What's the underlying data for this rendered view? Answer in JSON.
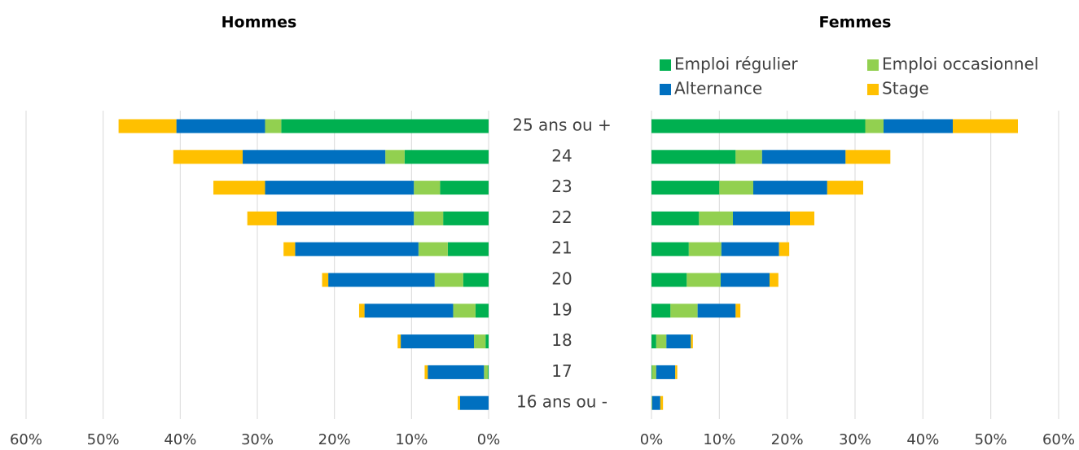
{
  "chart_data": [
    {
      "type": "bar",
      "orientation": "horizontal",
      "title": "Hommes",
      "categories": [
        "25 ans ou +",
        "24",
        "23",
        "22",
        "21",
        "20",
        "19",
        "18",
        "17",
        "16 ans ou -"
      ],
      "xlim": [
        60,
        0
      ],
      "xticks": [
        {
          "value": 60,
          "label": "60%"
        },
        {
          "value": 50,
          "label": "50%"
        },
        {
          "value": 40,
          "label": "40%"
        },
        {
          "value": 30,
          "label": "30%"
        },
        {
          "value": 20,
          "label": "20%"
        },
        {
          "value": 10,
          "label": "10%"
        },
        {
          "value": 0,
          "label": "0%"
        }
      ],
      "grid": true,
      "stacked": true,
      "series": [
        {
          "color": "#00b050",
          "values": [
            26.9,
            10.9,
            6.3,
            5.9,
            5.3,
            3.3,
            1.7,
            0.4,
            0.1,
            0
          ]
        },
        {
          "color": "#92d050",
          "values": [
            2.1,
            2.5,
            3.4,
            3.8,
            3.8,
            3.7,
            2.9,
            1.5,
            0.5,
            0
          ]
        },
        {
          "color": "#0070c0",
          "values": [
            11.5,
            18.5,
            19.3,
            17.8,
            16.0,
            13.8,
            11.5,
            9.5,
            7.3,
            3.7
          ]
        },
        {
          "color": "#ffc000",
          "values": [
            7.5,
            9.0,
            6.7,
            3.8,
            1.5,
            0.8,
            0.7,
            0.4,
            0.4,
            0.3
          ]
        }
      ]
    },
    {
      "type": "bar",
      "orientation": "horizontal",
      "title": "Femmes",
      "xlim": [
        0,
        60
      ],
      "xticks": [
        {
          "value": 0,
          "label": "0%"
        },
        {
          "value": 10,
          "label": "10%"
        },
        {
          "value": 20,
          "label": "20%"
        },
        {
          "value": 30,
          "label": "30%"
        },
        {
          "value": 40,
          "label": "40%"
        },
        {
          "value": 50,
          "label": "50%"
        },
        {
          "value": 60,
          "label": "60%"
        }
      ],
      "grid": true,
      "stacked": true,
      "legend": "top",
      "series": [
        {
          "name": "Emploi régulier",
          "color": "#00b050",
          "values": [
            31.5,
            12.4,
            10.0,
            7.0,
            5.5,
            5.2,
            2.8,
            0.7,
            0.1,
            0
          ]
        },
        {
          "name": "Emploi occasionnel",
          "color": "#92d050",
          "values": [
            2.7,
            3.9,
            5.0,
            5.0,
            4.8,
            5.0,
            4.0,
            1.5,
            0.6,
            0.1
          ]
        },
        {
          "name": "Alternance",
          "color": "#0070c0",
          "values": [
            10.2,
            12.3,
            10.9,
            8.4,
            8.5,
            7.2,
            5.6,
            3.6,
            2.8,
            1.2
          ]
        },
        {
          "name": "Stage",
          "color": "#ffc000",
          "values": [
            9.6,
            6.6,
            5.3,
            3.6,
            1.5,
            1.3,
            0.7,
            0.3,
            0.3,
            0.4
          ]
        }
      ]
    }
  ]
}
